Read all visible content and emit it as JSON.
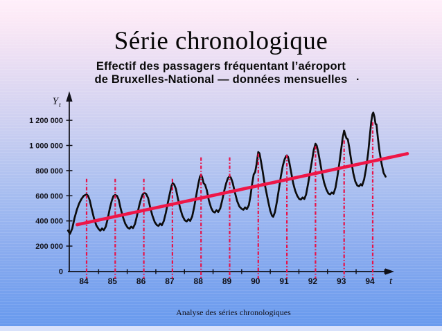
{
  "slide": {
    "title": "Série chronologique",
    "subtitle_line1": "Effectif des passagers fréquentant l’aéroport",
    "subtitle_line2": "de Bruxelles-National — données mensuelles",
    "subtitle_trailing_dot": ".",
    "footer": "Analyse des séries chronologiques"
  },
  "colors": {
    "background_top": "#ffeffa",
    "background_bottom": "#689aee",
    "series_line": "#0c0c0c",
    "trend_red": "#ee1647",
    "marker_red": "#e81349",
    "text": "#0a0a0a"
  },
  "chart_data": {
    "type": "line",
    "title": "Effectif des passagers fréquentant l’aéroport de Bruxelles-National — données mensuelles",
    "xlabel": "t",
    "ylabel_main": "Y",
    "ylabel_sub": "t",
    "grid": false,
    "legend": "none",
    "xlim": [
      83.3,
      95.3
    ],
    "ylim": [
      0,
      1300000
    ],
    "y_ticks": [
      {
        "label": "0",
        "value": 0
      },
      {
        "label": "200 000",
        "value": 200000
      },
      {
        "label": "400 000",
        "value": 400000
      },
      {
        "label": "600 000",
        "value": 600000
      },
      {
        "label": "800 000",
        "value": 800000
      },
      {
        "label": "1 000 000",
        "value": 1000000
      },
      {
        "label": "1 200 000",
        "value": 1200000
      }
    ],
    "x_ticks": [
      {
        "label": "84",
        "year": 84
      },
      {
        "label": "85",
        "year": 85
      },
      {
        "label": "86",
        "year": 86
      },
      {
        "label": "87",
        "year": 87
      },
      {
        "label": "88",
        "year": 88
      },
      {
        "label": "89",
        "year": 89
      },
      {
        "label": "90",
        "year": 90
      },
      {
        "label": "91",
        "year": 91
      },
      {
        "label": "92",
        "year": 92
      },
      {
        "label": "93",
        "year": 93
      },
      {
        "label": "94",
        "year": 94
      }
    ],
    "year_markers": [
      {
        "year": 84,
        "top_value": 735000
      },
      {
        "year": 85,
        "top_value": 735000
      },
      {
        "year": 86,
        "top_value": 735000
      },
      {
        "year": 87,
        "top_value": 735000
      },
      {
        "year": 88,
        "top_value": 905000
      },
      {
        "year": 89,
        "top_value": 905000
      },
      {
        "year": 90,
        "top_value": 935000
      },
      {
        "year": 91,
        "top_value": 925000
      },
      {
        "year": 92,
        "top_value": 995000
      },
      {
        "year": 93,
        "top_value": 1040000
      },
      {
        "year": 94,
        "top_value": 1185000
      }
    ],
    "trend_line": {
      "name": "Tendance linéaire",
      "color": "#ee1647",
      "points": [
        [
          83.67,
          370000
        ],
        [
          95.21,
          935000
        ]
      ]
    },
    "series": [
      {
        "name": "Passagers mensuels (série observée)",
        "color": "#0c0c0c",
        "points": [
          [
            83.35,
            323000
          ],
          [
            83.42,
            298000
          ],
          [
            83.5,
            340000
          ],
          [
            83.58,
            425000
          ],
          [
            83.66,
            490000
          ],
          [
            83.74,
            540000
          ],
          [
            83.82,
            575000
          ],
          [
            83.9,
            600000
          ],
          [
            84.0,
            611000
          ],
          [
            84.05,
            600000
          ],
          [
            84.11,
            565000
          ],
          [
            84.18,
            495000
          ],
          [
            84.26,
            420000
          ],
          [
            84.34,
            365000
          ],
          [
            84.42,
            336000
          ],
          [
            84.48,
            322000
          ],
          [
            84.54,
            340000
          ],
          [
            84.6,
            327000
          ],
          [
            84.67,
            355000
          ],
          [
            84.74,
            420000
          ],
          [
            84.81,
            500000
          ],
          [
            84.88,
            560000
          ],
          [
            84.94,
            598000
          ],
          [
            85.0,
            606000
          ],
          [
            85.06,
            600000
          ],
          [
            85.12,
            570000
          ],
          [
            85.19,
            500000
          ],
          [
            85.27,
            430000
          ],
          [
            85.35,
            378000
          ],
          [
            85.43,
            348000
          ],
          [
            85.5,
            338000
          ],
          [
            85.56,
            355000
          ],
          [
            85.62,
            343000
          ],
          [
            85.69,
            375000
          ],
          [
            85.76,
            440000
          ],
          [
            85.83,
            515000
          ],
          [
            85.9,
            575000
          ],
          [
            85.96,
            610000
          ],
          [
            86.02,
            623000
          ],
          [
            86.08,
            615000
          ],
          [
            86.15,
            582000
          ],
          [
            86.22,
            510000
          ],
          [
            86.3,
            442000
          ],
          [
            86.38,
            392000
          ],
          [
            86.45,
            368000
          ],
          [
            86.51,
            360000
          ],
          [
            86.57,
            378000
          ],
          [
            86.63,
            366000
          ],
          [
            86.7,
            400000
          ],
          [
            86.77,
            465000
          ],
          [
            86.84,
            545000
          ],
          [
            86.91,
            620000
          ],
          [
            86.97,
            680000
          ],
          [
            87.01,
            700000
          ],
          [
            87.06,
            690000
          ],
          [
            87.12,
            655000
          ],
          [
            87.19,
            580000
          ],
          [
            87.27,
            500000
          ],
          [
            87.35,
            440000
          ],
          [
            87.43,
            405000
          ],
          [
            87.5,
            396000
          ],
          [
            87.56,
            413000
          ],
          [
            87.62,
            400000
          ],
          [
            87.69,
            435000
          ],
          [
            87.76,
            510000
          ],
          [
            87.83,
            600000
          ],
          [
            87.9,
            690000
          ],
          [
            87.96,
            750000
          ],
          [
            88.0,
            768000
          ],
          [
            88.04,
            745000
          ],
          [
            88.09,
            700000
          ],
          [
            88.14,
            688000
          ],
          [
            88.2,
            645000
          ],
          [
            88.27,
            565000
          ],
          [
            88.35,
            505000
          ],
          [
            88.42,
            475000
          ],
          [
            88.48,
            467000
          ],
          [
            88.54,
            485000
          ],
          [
            88.6,
            471000
          ],
          [
            88.67,
            500000
          ],
          [
            88.74,
            565000
          ],
          [
            88.81,
            640000
          ],
          [
            88.88,
            700000
          ],
          [
            88.94,
            740000
          ],
          [
            89.0,
            756000
          ],
          [
            89.05,
            740000
          ],
          [
            89.11,
            700000
          ],
          [
            89.18,
            630000
          ],
          [
            89.26,
            560000
          ],
          [
            89.34,
            515000
          ],
          [
            89.42,
            496000
          ],
          [
            89.48,
            489000
          ],
          [
            89.54,
            507000
          ],
          [
            89.6,
            494000
          ],
          [
            89.67,
            525000
          ],
          [
            89.73,
            600000
          ],
          [
            89.79,
            700000
          ],
          [
            89.84,
            770000
          ],
          [
            89.89,
            788000
          ],
          [
            89.94,
            850000
          ],
          [
            90.0,
            948000
          ],
          [
            90.04,
            938000
          ],
          [
            90.09,
            880000
          ],
          [
            90.15,
            800000
          ],
          [
            90.21,
            710000
          ],
          [
            90.28,
            630000
          ],
          [
            90.35,
            550000
          ],
          [
            90.42,
            480000
          ],
          [
            90.48,
            442000
          ],
          [
            90.52,
            433000
          ],
          [
            90.58,
            468000
          ],
          [
            90.65,
            550000
          ],
          [
            90.72,
            650000
          ],
          [
            90.79,
            755000
          ],
          [
            90.86,
            840000
          ],
          [
            90.92,
            890000
          ],
          [
            90.97,
            915000
          ],
          [
            91.0,
            921000
          ],
          [
            91.04,
            908000
          ],
          [
            91.09,
            860000
          ],
          [
            91.15,
            785000
          ],
          [
            91.22,
            700000
          ],
          [
            91.29,
            640000
          ],
          [
            91.36,
            600000
          ],
          [
            91.43,
            575000
          ],
          [
            91.49,
            570000
          ],
          [
            91.55,
            586000
          ],
          [
            91.61,
            574000
          ],
          [
            91.67,
            610000
          ],
          [
            91.74,
            695000
          ],
          [
            91.81,
            790000
          ],
          [
            91.88,
            880000
          ],
          [
            91.94,
            965000
          ],
          [
            92.0,
            1014000
          ],
          [
            92.04,
            1000000
          ],
          [
            92.09,
            955000
          ],
          [
            92.15,
            880000
          ],
          [
            92.22,
            790000
          ],
          [
            92.3,
            705000
          ],
          [
            92.38,
            650000
          ],
          [
            92.45,
            618000
          ],
          [
            92.51,
            611000
          ],
          [
            92.57,
            626000
          ],
          [
            92.63,
            616000
          ],
          [
            92.7,
            665000
          ],
          [
            92.77,
            760000
          ],
          [
            92.84,
            870000
          ],
          [
            92.9,
            975000
          ],
          [
            92.95,
            1060000
          ],
          [
            93.0,
            1118000
          ],
          [
            93.04,
            1085000
          ],
          [
            93.08,
            1058000
          ],
          [
            93.13,
            1048000
          ],
          [
            93.18,
            985000
          ],
          [
            93.25,
            880000
          ],
          [
            93.32,
            780000
          ],
          [
            93.39,
            715000
          ],
          [
            93.46,
            682000
          ],
          [
            93.52,
            675000
          ],
          [
            93.58,
            692000
          ],
          [
            93.63,
            681000
          ],
          [
            93.7,
            730000
          ],
          [
            93.77,
            820000
          ],
          [
            93.84,
            940000
          ],
          [
            93.9,
            1080000
          ],
          [
            93.95,
            1190000
          ],
          [
            93.99,
            1248000
          ],
          [
            94.02,
            1262000
          ],
          [
            94.06,
            1228000
          ],
          [
            94.1,
            1170000
          ],
          [
            94.13,
            1168000
          ],
          [
            94.18,
            1062000
          ],
          [
            94.24,
            950000
          ],
          [
            94.31,
            856000
          ],
          [
            94.38,
            782000
          ],
          [
            94.45,
            752000
          ]
        ]
      }
    ]
  }
}
